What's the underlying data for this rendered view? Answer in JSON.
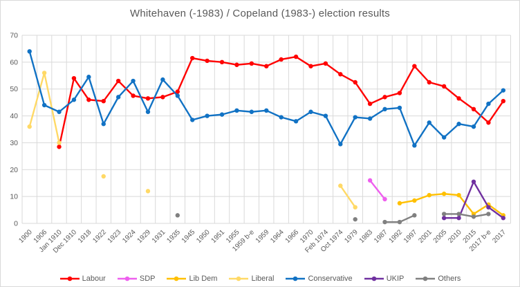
{
  "chart_data": {
    "type": "line",
    "title": "Whitehaven (-1983) / Copeland (1983-) election results",
    "xlabel": "",
    "ylabel": "",
    "ylim": [
      0,
      70
    ],
    "ytick_step": 10,
    "yticks": [
      0,
      10,
      20,
      30,
      40,
      50,
      60,
      70
    ],
    "grid": true,
    "legend_position": "bottom",
    "categories": [
      "1900",
      "1906",
      "Jan 1910",
      "Dec 1910",
      "1918",
      "1922",
      "1923",
      "1924",
      "1929",
      "1931",
      "1935",
      "1945",
      "1950",
      "1951",
      "1955",
      "1959 b-e",
      "1959",
      "1964",
      "1966",
      "1970",
      "Feb 1974",
      "Oct 1974",
      "1979",
      "1983",
      "1987",
      "1992",
      "1997",
      "2001",
      "2005",
      "2010",
      "2015",
      "2017 b-e",
      "2017"
    ],
    "series": [
      {
        "name": "Labour",
        "color": "#ff0000",
        "values": [
          null,
          null,
          28.5,
          54,
          46,
          45.5,
          53,
          47.5,
          46.5,
          47,
          49,
          61.5,
          60.5,
          60,
          59,
          59.5,
          58.5,
          61,
          62,
          58.5,
          59.5,
          55.5,
          52.5,
          44.5,
          47,
          48.5,
          58.5,
          52.5,
          51,
          46.5,
          42.5,
          37.5,
          45.5
        ]
      },
      {
        "name": "SDP",
        "color": "#ee5fee",
        "values": [
          null,
          null,
          null,
          null,
          null,
          null,
          null,
          null,
          null,
          null,
          null,
          null,
          null,
          null,
          null,
          null,
          null,
          null,
          null,
          null,
          null,
          null,
          null,
          16,
          9,
          null,
          null,
          null,
          null,
          null,
          null,
          null,
          null
        ]
      },
      {
        "name": "Lib Dem",
        "color": "#ffc000",
        "values": [
          null,
          null,
          null,
          null,
          null,
          null,
          null,
          null,
          null,
          null,
          null,
          null,
          null,
          null,
          null,
          null,
          null,
          null,
          null,
          null,
          null,
          null,
          null,
          null,
          null,
          7.5,
          8.5,
          10.5,
          11,
          10.5,
          3.5,
          7,
          3
        ]
      },
      {
        "name": "Liberal",
        "color": "#ffd966",
        "values": [
          36,
          56,
          30,
          null,
          null,
          17.5,
          null,
          null,
          12,
          null,
          null,
          null,
          null,
          null,
          null,
          null,
          null,
          null,
          null,
          null,
          null,
          14,
          6,
          null,
          null,
          null,
          null,
          null,
          null,
          null,
          null,
          null,
          null
        ]
      },
      {
        "name": "Conservative",
        "color": "#1172c4",
        "values": [
          64,
          44,
          41.5,
          46,
          54.5,
          37,
          47,
          53,
          41.5,
          53.5,
          47.5,
          38.5,
          40,
          40.5,
          42,
          41.5,
          42,
          39.5,
          38,
          41.5,
          40,
          29.5,
          39.5,
          39,
          42.5,
          43,
          29,
          37.5,
          32,
          37,
          36,
          44.5,
          49.5
        ]
      },
      {
        "name": "UKIP",
        "color": "#7030a0",
        "values": [
          null,
          null,
          null,
          null,
          null,
          null,
          null,
          null,
          null,
          null,
          null,
          null,
          null,
          null,
          null,
          null,
          null,
          null,
          null,
          null,
          null,
          null,
          null,
          null,
          null,
          null,
          null,
          null,
          2,
          2,
          15.5,
          6,
          2
        ]
      },
      {
        "name": "Others",
        "color": "#808080",
        "values": [
          null,
          null,
          null,
          null,
          null,
          null,
          null,
          null,
          null,
          null,
          3,
          null,
          null,
          null,
          null,
          null,
          null,
          null,
          null,
          null,
          null,
          null,
          1.5,
          null,
          0.5,
          0.5,
          3,
          null,
          3.5,
          3.5,
          2.5,
          3.5,
          null
        ]
      }
    ]
  },
  "style": {
    "grid_color": "#d9d9d9",
    "axis_text_color": "#595959",
    "title_color": "#595959"
  }
}
